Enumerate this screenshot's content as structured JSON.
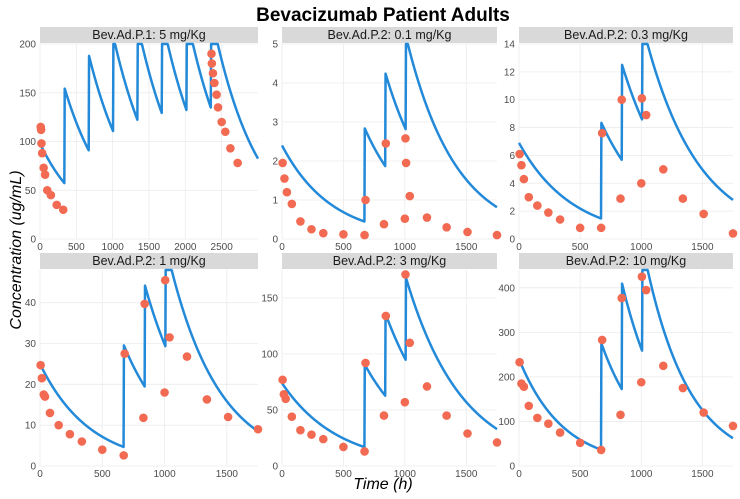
{
  "title": "Bevacizumab Patient Adults",
  "xlabel": "Time (h)",
  "ylabel": "Concentration (ug/mL)",
  "colors": {
    "line": "#2389d9",
    "point": "#f26a52",
    "strip_bg": "#d9d9d9",
    "grid": "#ebebeb"
  },
  "chart_data": [
    {
      "type": "line",
      "panel_title": "Bev.Ad.P.1: 5 mg/Kg",
      "xlim": [
        0,
        3000
      ],
      "ylim": [
        0,
        200
      ],
      "xticks": [
        0,
        500,
        1000,
        1500,
        2000,
        2500
      ],
      "yticks": [
        0,
        50,
        100,
        150,
        200
      ],
      "dose_times": [
        0,
        336,
        672,
        1008,
        1344,
        1680,
        2016,
        2352
      ],
      "dose_increment": 98,
      "decay_rate": 0.0016,
      "model_end": 3000,
      "observations": [
        {
          "x": 10,
          "y": 115
        },
        {
          "x": 15,
          "y": 112
        },
        {
          "x": 20,
          "y": 98
        },
        {
          "x": 30,
          "y": 88
        },
        {
          "x": 50,
          "y": 73
        },
        {
          "x": 70,
          "y": 66
        },
        {
          "x": 100,
          "y": 50
        },
        {
          "x": 150,
          "y": 45
        },
        {
          "x": 230,
          "y": 35
        },
        {
          "x": 320,
          "y": 30
        },
        {
          "x": 2360,
          "y": 190
        },
        {
          "x": 2365,
          "y": 180
        },
        {
          "x": 2380,
          "y": 170
        },
        {
          "x": 2400,
          "y": 160
        },
        {
          "x": 2430,
          "y": 148
        },
        {
          "x": 2450,
          "y": 135
        },
        {
          "x": 2500,
          "y": 120
        },
        {
          "x": 2550,
          "y": 110
        },
        {
          "x": 2620,
          "y": 93
        },
        {
          "x": 2720,
          "y": 78
        }
      ]
    },
    {
      "type": "line",
      "panel_title": "Bev.Ad.P.2: 0.1 mg/Kg",
      "xlim": [
        0,
        1750
      ],
      "ylim": [
        0,
        5
      ],
      "xticks": [
        0,
        500,
        1000,
        1500
      ],
      "yticks": [
        0,
        1,
        2,
        3,
        4,
        5
      ],
      "dose_times": [
        0,
        672,
        840,
        1008
      ],
      "dose_increment": 2.4,
      "decay_rate": 0.0025,
      "model_end": 1750,
      "observations": [
        {
          "x": 5,
          "y": 1.95
        },
        {
          "x": 20,
          "y": 1.55
        },
        {
          "x": 40,
          "y": 1.2
        },
        {
          "x": 80,
          "y": 0.9
        },
        {
          "x": 150,
          "y": 0.45
        },
        {
          "x": 240,
          "y": 0.25
        },
        {
          "x": 336,
          "y": 0.15
        },
        {
          "x": 500,
          "y": 0.12
        },
        {
          "x": 672,
          "y": 0.1
        },
        {
          "x": 680,
          "y": 1.0
        },
        {
          "x": 830,
          "y": 0.38
        },
        {
          "x": 845,
          "y": 2.45
        },
        {
          "x": 1000,
          "y": 0.52
        },
        {
          "x": 1005,
          "y": 2.58
        },
        {
          "x": 1010,
          "y": 1.95
        },
        {
          "x": 1040,
          "y": 1.1
        },
        {
          "x": 1180,
          "y": 0.55
        },
        {
          "x": 1340,
          "y": 0.3
        },
        {
          "x": 1510,
          "y": 0.18
        },
        {
          "x": 1750,
          "y": 0.1
        }
      ]
    },
    {
      "type": "line",
      "panel_title": "Bev.Ad.P.2: 0.3 mg/Kg",
      "xlim": [
        0,
        1750
      ],
      "ylim": [
        0,
        14
      ],
      "xticks": [
        0,
        500,
        1000,
        1500
      ],
      "yticks": [
        0,
        2,
        4,
        6,
        8,
        10,
        12,
        14
      ],
      "dose_times": [
        0,
        672,
        840,
        1008
      ],
      "dose_increment": 6.9,
      "decay_rate": 0.0023,
      "model_end": 1750,
      "observations": [
        {
          "x": 5,
          "y": 6.1
        },
        {
          "x": 20,
          "y": 5.3
        },
        {
          "x": 40,
          "y": 4.3
        },
        {
          "x": 80,
          "y": 3.0
        },
        {
          "x": 150,
          "y": 2.4
        },
        {
          "x": 240,
          "y": 1.9
        },
        {
          "x": 336,
          "y": 1.4
        },
        {
          "x": 500,
          "y": 0.8
        },
        {
          "x": 672,
          "y": 0.8
        },
        {
          "x": 680,
          "y": 7.6
        },
        {
          "x": 830,
          "y": 2.9
        },
        {
          "x": 840,
          "y": 10.0
        },
        {
          "x": 1000,
          "y": 4.0
        },
        {
          "x": 1005,
          "y": 10.1
        },
        {
          "x": 1040,
          "y": 8.9
        },
        {
          "x": 1180,
          "y": 5.0
        },
        {
          "x": 1340,
          "y": 2.9
        },
        {
          "x": 1510,
          "y": 1.8
        },
        {
          "x": 1750,
          "y": 0.4
        }
      ]
    },
    {
      "type": "line",
      "panel_title": "Bev.Ad.P.2: 1 mg/Kg",
      "xlim": [
        0,
        1750
      ],
      "ylim": [
        0,
        48
      ],
      "xticks": [
        0,
        500,
        1000,
        1500
      ],
      "yticks": [
        0,
        10,
        20,
        30,
        40
      ],
      "dose_times": [
        0,
        672,
        840,
        1008
      ],
      "dose_increment": 25,
      "decay_rate": 0.0025,
      "model_end": 1750,
      "observations": [
        {
          "x": 5,
          "y": 24.7
        },
        {
          "x": 15,
          "y": 21.5
        },
        {
          "x": 30,
          "y": 17.5
        },
        {
          "x": 40,
          "y": 17.0
        },
        {
          "x": 80,
          "y": 13.0
        },
        {
          "x": 150,
          "y": 10.0
        },
        {
          "x": 240,
          "y": 7.8
        },
        {
          "x": 336,
          "y": 6.0
        },
        {
          "x": 500,
          "y": 4.0
        },
        {
          "x": 672,
          "y": 2.6
        },
        {
          "x": 680,
          "y": 27.5
        },
        {
          "x": 830,
          "y": 11.8
        },
        {
          "x": 840,
          "y": 39.7
        },
        {
          "x": 1000,
          "y": 18.0
        },
        {
          "x": 1005,
          "y": 45.5
        },
        {
          "x": 1040,
          "y": 31.5
        },
        {
          "x": 1180,
          "y": 26.8
        },
        {
          "x": 1340,
          "y": 16.3
        },
        {
          "x": 1510,
          "y": 12.0
        },
        {
          "x": 1750,
          "y": 9.0
        }
      ]
    },
    {
      "type": "line",
      "panel_title": "Bev.Ad.P.2: 3 mg/Kg",
      "xlim": [
        0,
        1750
      ],
      "ylim": [
        0,
        175
      ],
      "xticks": [
        0,
        500,
        1000,
        1500
      ],
      "yticks": [
        0,
        50,
        100,
        150
      ],
      "dose_times": [
        0,
        672,
        840,
        1008
      ],
      "dose_increment": 74,
      "decay_rate": 0.0022,
      "model_end": 1750,
      "observations": [
        {
          "x": 5,
          "y": 77
        },
        {
          "x": 15,
          "y": 64
        },
        {
          "x": 30,
          "y": 60
        },
        {
          "x": 80,
          "y": 44
        },
        {
          "x": 150,
          "y": 32
        },
        {
          "x": 240,
          "y": 28
        },
        {
          "x": 336,
          "y": 24
        },
        {
          "x": 500,
          "y": 17
        },
        {
          "x": 672,
          "y": 13
        },
        {
          "x": 680,
          "y": 92
        },
        {
          "x": 830,
          "y": 45
        },
        {
          "x": 845,
          "y": 134
        },
        {
          "x": 1000,
          "y": 57
        },
        {
          "x": 1005,
          "y": 171
        },
        {
          "x": 1040,
          "y": 110
        },
        {
          "x": 1180,
          "y": 71
        },
        {
          "x": 1340,
          "y": 45
        },
        {
          "x": 1510,
          "y": 29
        },
        {
          "x": 1750,
          "y": 21
        }
      ]
    },
    {
      "type": "line",
      "panel_title": "Bev.Ad.P.2: 10 mg/Kg",
      "xlim": [
        0,
        1750
      ],
      "ylim": [
        0,
        440
      ],
      "xticks": [
        0,
        500,
        1000,
        1500
      ],
      "yticks": [
        0,
        100,
        200,
        300,
        400
      ],
      "dose_times": [
        0,
        672,
        840,
        1008
      ],
      "dose_increment": 240,
      "decay_rate": 0.0028,
      "model_end": 1750,
      "observations": [
        {
          "x": 5,
          "y": 233
        },
        {
          "x": 20,
          "y": 185
        },
        {
          "x": 40,
          "y": 178
        },
        {
          "x": 80,
          "y": 135
        },
        {
          "x": 150,
          "y": 108
        },
        {
          "x": 240,
          "y": 95
        },
        {
          "x": 336,
          "y": 75
        },
        {
          "x": 500,
          "y": 52
        },
        {
          "x": 672,
          "y": 36
        },
        {
          "x": 680,
          "y": 283
        },
        {
          "x": 830,
          "y": 115
        },
        {
          "x": 840,
          "y": 377
        },
        {
          "x": 1000,
          "y": 188
        },
        {
          "x": 1005,
          "y": 425
        },
        {
          "x": 1040,
          "y": 395
        },
        {
          "x": 1180,
          "y": 225
        },
        {
          "x": 1340,
          "y": 175
        },
        {
          "x": 1510,
          "y": 120
        },
        {
          "x": 1750,
          "y": 90
        }
      ]
    }
  ]
}
